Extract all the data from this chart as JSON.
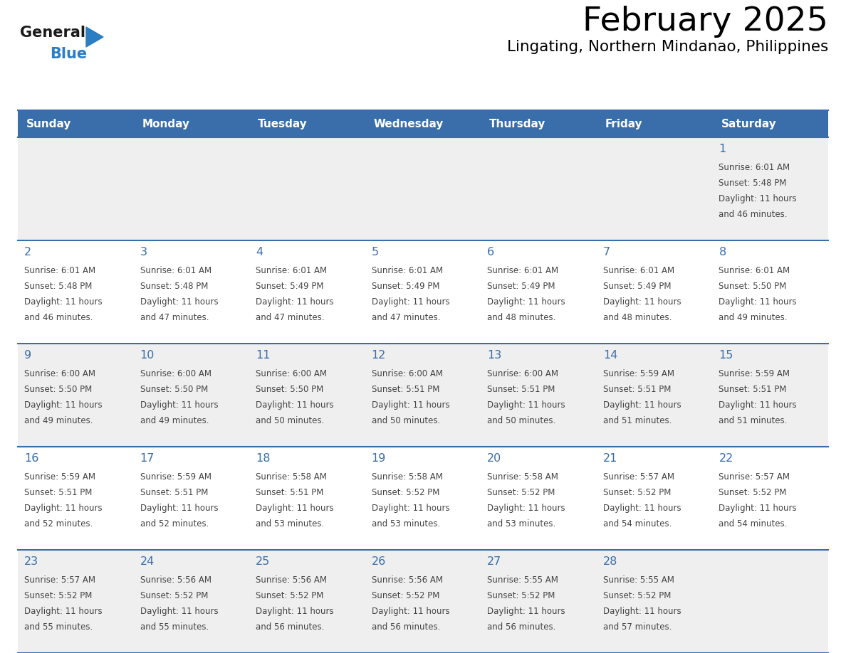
{
  "title": "February 2025",
  "subtitle": "Lingating, Northern Mindanao, Philippines",
  "days_of_week": [
    "Sunday",
    "Monday",
    "Tuesday",
    "Wednesday",
    "Thursday",
    "Friday",
    "Saturday"
  ],
  "header_bg": "#3A6EAA",
  "header_text": "#FFFFFF",
  "cell_bg_light": "#EFEFEF",
  "cell_bg_white": "#FFFFFF",
  "day_number_color": "#3A6EAA",
  "text_color": "#444444",
  "line_color": "#3A6EAA",
  "logo_general_color": "#1a1a1a",
  "logo_blue_color": "#2B7EC1",
  "calendar_data": [
    [
      {
        "day": null,
        "sunrise": null,
        "sunset": null,
        "daylight": null
      },
      {
        "day": null,
        "sunrise": null,
        "sunset": null,
        "daylight": null
      },
      {
        "day": null,
        "sunrise": null,
        "sunset": null,
        "daylight": null
      },
      {
        "day": null,
        "sunrise": null,
        "sunset": null,
        "daylight": null
      },
      {
        "day": null,
        "sunrise": null,
        "sunset": null,
        "daylight": null
      },
      {
        "day": null,
        "sunrise": null,
        "sunset": null,
        "daylight": null
      },
      {
        "day": 1,
        "sunrise": "6:01 AM",
        "sunset": "5:48 PM",
        "daylight": "11 hours\nand 46 minutes."
      }
    ],
    [
      {
        "day": 2,
        "sunrise": "6:01 AM",
        "sunset": "5:48 PM",
        "daylight": "11 hours\nand 46 minutes."
      },
      {
        "day": 3,
        "sunrise": "6:01 AM",
        "sunset": "5:48 PM",
        "daylight": "11 hours\nand 47 minutes."
      },
      {
        "day": 4,
        "sunrise": "6:01 AM",
        "sunset": "5:49 PM",
        "daylight": "11 hours\nand 47 minutes."
      },
      {
        "day": 5,
        "sunrise": "6:01 AM",
        "sunset": "5:49 PM",
        "daylight": "11 hours\nand 47 minutes."
      },
      {
        "day": 6,
        "sunrise": "6:01 AM",
        "sunset": "5:49 PM",
        "daylight": "11 hours\nand 48 minutes."
      },
      {
        "day": 7,
        "sunrise": "6:01 AM",
        "sunset": "5:49 PM",
        "daylight": "11 hours\nand 48 minutes."
      },
      {
        "day": 8,
        "sunrise": "6:01 AM",
        "sunset": "5:50 PM",
        "daylight": "11 hours\nand 49 minutes."
      }
    ],
    [
      {
        "day": 9,
        "sunrise": "6:00 AM",
        "sunset": "5:50 PM",
        "daylight": "11 hours\nand 49 minutes."
      },
      {
        "day": 10,
        "sunrise": "6:00 AM",
        "sunset": "5:50 PM",
        "daylight": "11 hours\nand 49 minutes."
      },
      {
        "day": 11,
        "sunrise": "6:00 AM",
        "sunset": "5:50 PM",
        "daylight": "11 hours\nand 50 minutes."
      },
      {
        "day": 12,
        "sunrise": "6:00 AM",
        "sunset": "5:51 PM",
        "daylight": "11 hours\nand 50 minutes."
      },
      {
        "day": 13,
        "sunrise": "6:00 AM",
        "sunset": "5:51 PM",
        "daylight": "11 hours\nand 50 minutes."
      },
      {
        "day": 14,
        "sunrise": "5:59 AM",
        "sunset": "5:51 PM",
        "daylight": "11 hours\nand 51 minutes."
      },
      {
        "day": 15,
        "sunrise": "5:59 AM",
        "sunset": "5:51 PM",
        "daylight": "11 hours\nand 51 minutes."
      }
    ],
    [
      {
        "day": 16,
        "sunrise": "5:59 AM",
        "sunset": "5:51 PM",
        "daylight": "11 hours\nand 52 minutes."
      },
      {
        "day": 17,
        "sunrise": "5:59 AM",
        "sunset": "5:51 PM",
        "daylight": "11 hours\nand 52 minutes."
      },
      {
        "day": 18,
        "sunrise": "5:58 AM",
        "sunset": "5:51 PM",
        "daylight": "11 hours\nand 53 minutes."
      },
      {
        "day": 19,
        "sunrise": "5:58 AM",
        "sunset": "5:52 PM",
        "daylight": "11 hours\nand 53 minutes."
      },
      {
        "day": 20,
        "sunrise": "5:58 AM",
        "sunset": "5:52 PM",
        "daylight": "11 hours\nand 53 minutes."
      },
      {
        "day": 21,
        "sunrise": "5:57 AM",
        "sunset": "5:52 PM",
        "daylight": "11 hours\nand 54 minutes."
      },
      {
        "day": 22,
        "sunrise": "5:57 AM",
        "sunset": "5:52 PM",
        "daylight": "11 hours\nand 54 minutes."
      }
    ],
    [
      {
        "day": 23,
        "sunrise": "5:57 AM",
        "sunset": "5:52 PM",
        "daylight": "11 hours\nand 55 minutes."
      },
      {
        "day": 24,
        "sunrise": "5:56 AM",
        "sunset": "5:52 PM",
        "daylight": "11 hours\nand 55 minutes."
      },
      {
        "day": 25,
        "sunrise": "5:56 AM",
        "sunset": "5:52 PM",
        "daylight": "11 hours\nand 56 minutes."
      },
      {
        "day": 26,
        "sunrise": "5:56 AM",
        "sunset": "5:52 PM",
        "daylight": "11 hours\nand 56 minutes."
      },
      {
        "day": 27,
        "sunrise": "5:55 AM",
        "sunset": "5:52 PM",
        "daylight": "11 hours\nand 56 minutes."
      },
      {
        "day": 28,
        "sunrise": "5:55 AM",
        "sunset": "5:52 PM",
        "daylight": "11 hours\nand 57 minutes."
      },
      {
        "day": null,
        "sunrise": null,
        "sunset": null,
        "daylight": null
      }
    ]
  ]
}
